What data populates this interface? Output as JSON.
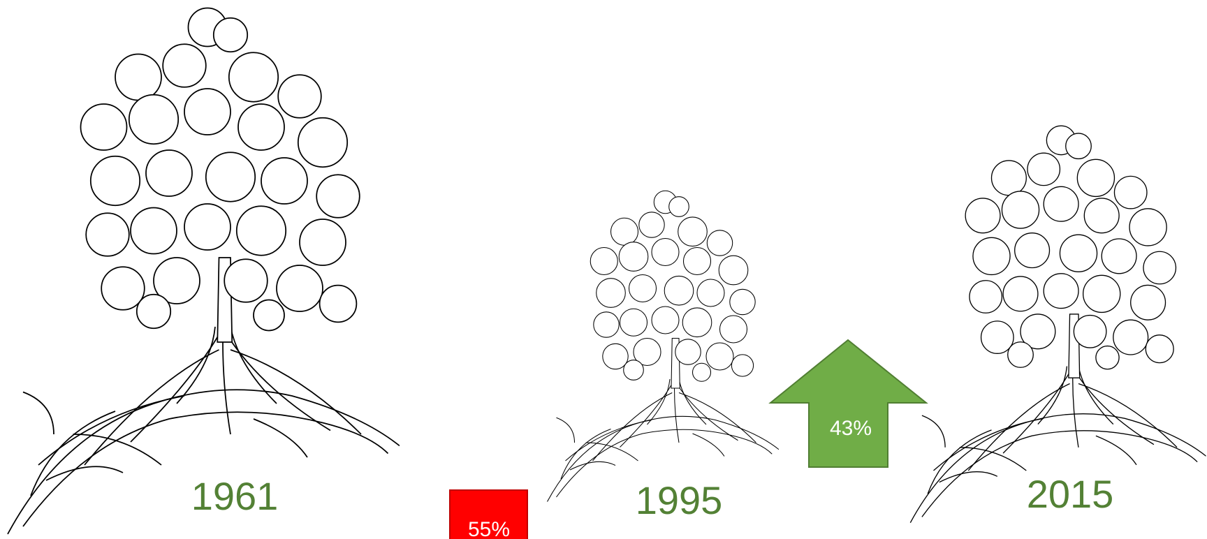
{
  "panels": [
    {
      "year": "1961"
    },
    {
      "year": "1995"
    },
    {
      "year": "2015"
    }
  ],
  "changes": [
    {
      "label": "55%"
    },
    {
      "label": "43%"
    }
  ]
}
